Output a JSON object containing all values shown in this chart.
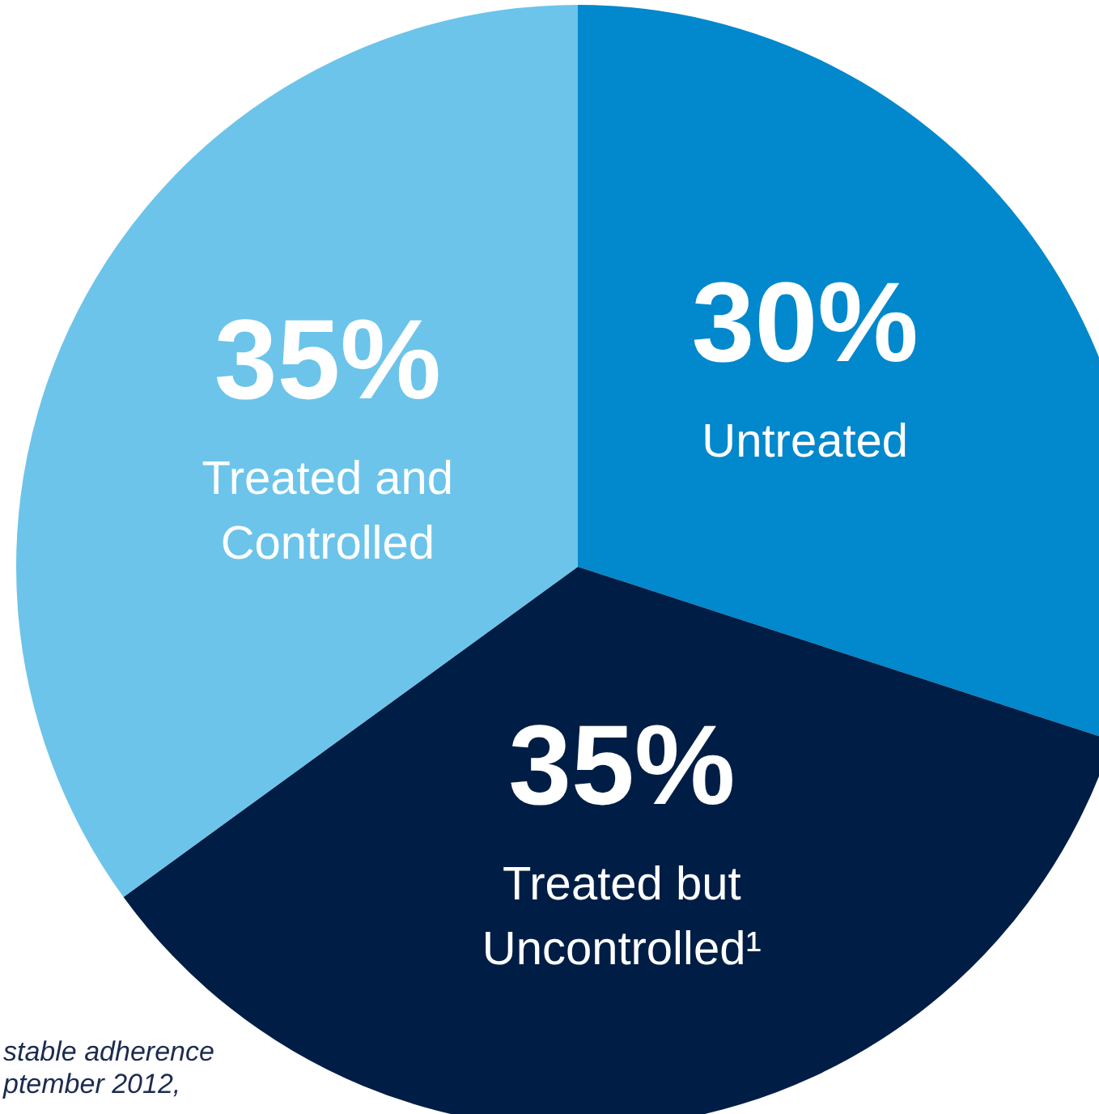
{
  "chart_data": {
    "type": "pie",
    "categories": [
      "Untreated",
      "Treated but Uncontrolled¹",
      "Treated and Controlled"
    ],
    "values": [
      30,
      35,
      35
    ],
    "colors": [
      "#0288cc",
      "#001e45",
      "#6cc4ea"
    ],
    "value_labels": [
      "30%",
      "35%",
      "35%"
    ],
    "annotations": [
      "stable adherence",
      "ptember 2012,"
    ]
  }
}
